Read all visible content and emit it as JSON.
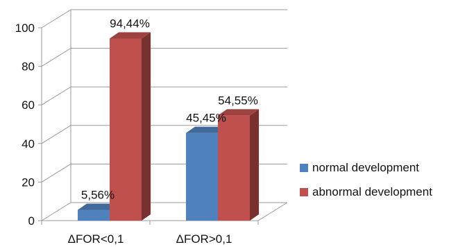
{
  "chart_data": {
    "type": "bar",
    "categories": [
      "ΔFOR<0,1",
      "ΔFOR>0,1"
    ],
    "series": [
      {
        "name": "normal development",
        "values": [
          5.56,
          45.45
        ],
        "labels": [
          "5,56%",
          "45,45%"
        ],
        "color": "#4f81bd"
      },
      {
        "name": "abnormal development",
        "values": [
          94.44,
          54.55
        ],
        "labels": [
          "94,44%",
          "54,55%"
        ],
        "color": "#c0504d"
      }
    ],
    "yticks": [
      "0",
      "20",
      "40",
      "60",
      "80",
      "100"
    ],
    "ylim": [
      0,
      100
    ],
    "grid": true,
    "legend_position": "right",
    "style": "3d-clustered-column"
  }
}
